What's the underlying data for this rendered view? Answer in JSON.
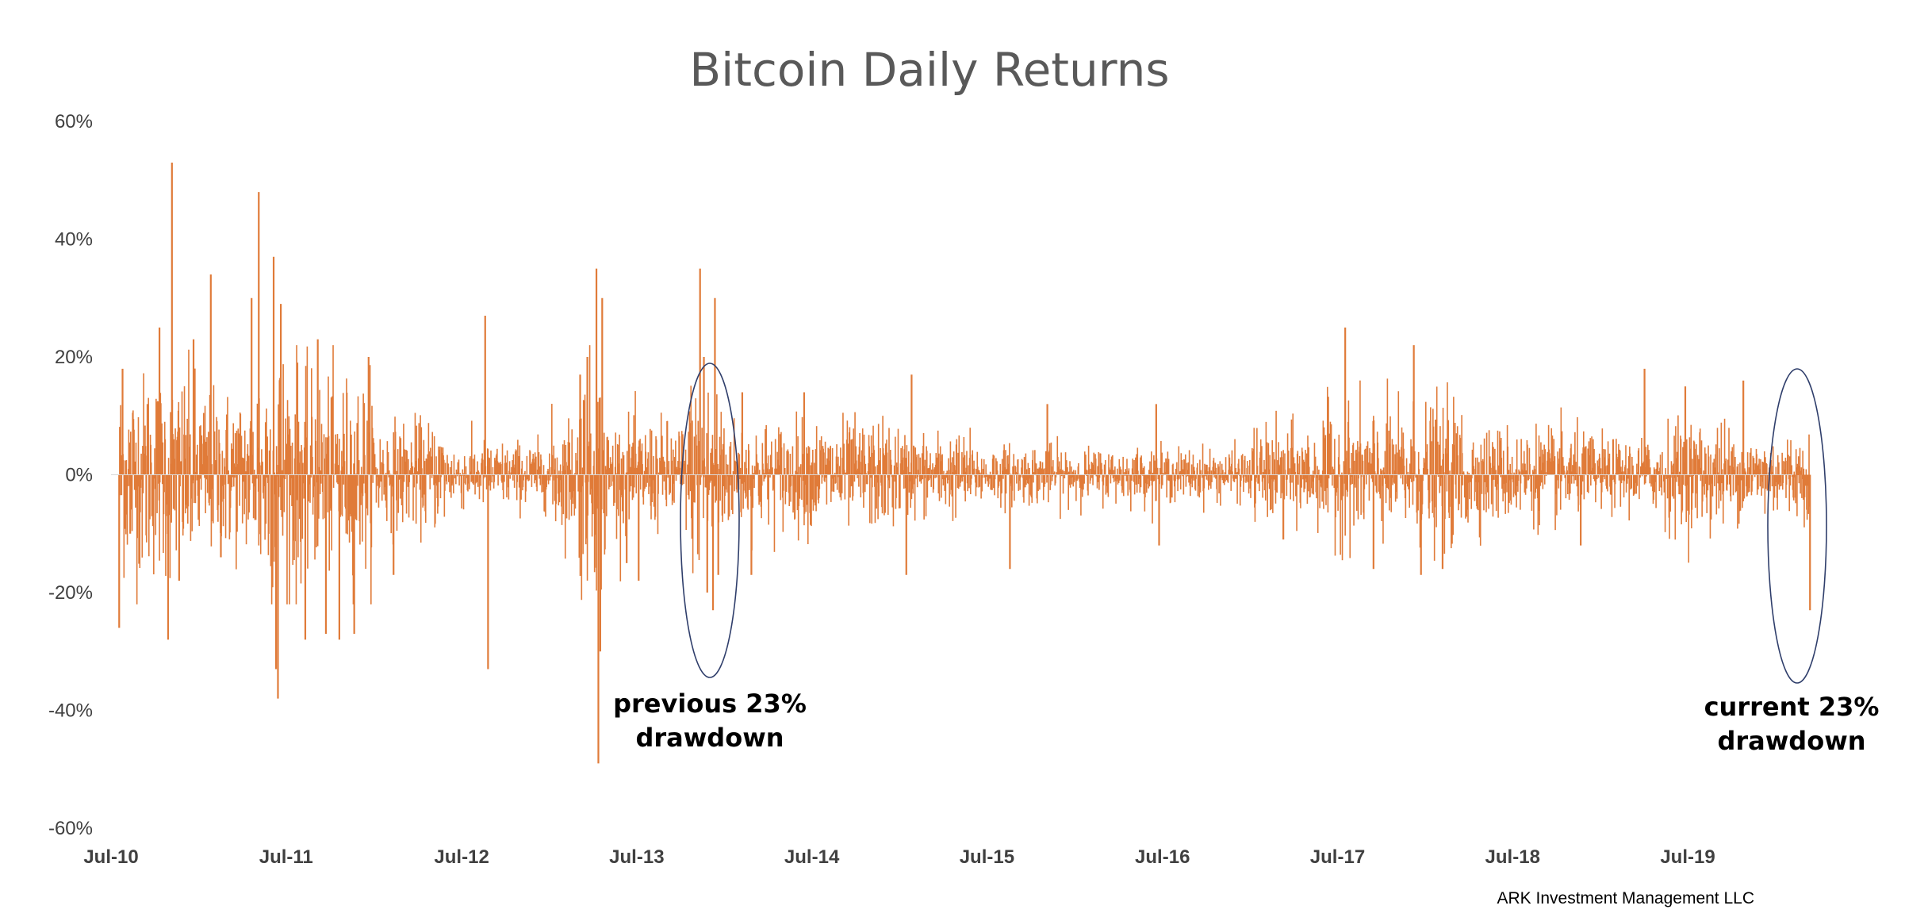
{
  "chart_data": {
    "type": "bar",
    "title": "Bitcoin Daily Returns",
    "xlabel": "",
    "ylabel": "",
    "ylim": [
      -0.6,
      0.6
    ],
    "y_ticks": [
      0.6,
      0.4,
      0.2,
      0,
      -0.2,
      -0.4,
      -0.6
    ],
    "y_tick_labels": [
      "60%",
      "40%",
      "20%",
      "0%",
      "-20%",
      "-40%",
      "-60%"
    ],
    "x_range": [
      "2010-07-01",
      "2020-03-12"
    ],
    "x_tick_labels": [
      "Jul-10",
      "Jul-11",
      "Jul-12",
      "Jul-13",
      "Jul-14",
      "Jul-15",
      "Jul-16",
      "Jul-17",
      "Jul-18",
      "Jul-19"
    ],
    "x_tick_dates": [
      "2010-07-01",
      "2011-07-01",
      "2012-07-01",
      "2013-07-01",
      "2014-07-01",
      "2015-07-01",
      "2016-07-01",
      "2017-07-01",
      "2018-07-01",
      "2019-07-01"
    ],
    "grid": false,
    "series": [
      {
        "color": "#E07B39",
        "points": [
          [
            "2010-07-18",
            -0.26
          ],
          [
            "2010-07-25",
            0.18
          ],
          [
            "2010-08-10",
            -0.1
          ],
          [
            "2010-09-15",
            0.12
          ],
          [
            "2010-10-10",
            0.25
          ],
          [
            "2010-10-28",
            -0.28
          ],
          [
            "2010-11-05",
            0.53
          ],
          [
            "2010-11-20",
            -0.18
          ],
          [
            "2010-12-20",
            0.23
          ],
          [
            "2011-01-25",
            0.34
          ],
          [
            "2011-02-15",
            -0.14
          ],
          [
            "2011-04-20",
            0.3
          ],
          [
            "2011-05-05",
            0.48
          ],
          [
            "2011-06-05",
            0.37
          ],
          [
            "2011-06-10",
            -0.33
          ],
          [
            "2011-06-14",
            -0.38
          ],
          [
            "2011-06-20",
            0.29
          ],
          [
            "2011-08-10",
            -0.28
          ],
          [
            "2011-09-05",
            0.23
          ],
          [
            "2011-09-22",
            -0.27
          ],
          [
            "2011-10-20",
            -0.28
          ],
          [
            "2011-11-20",
            -0.27
          ],
          [
            "2011-12-20",
            0.2
          ],
          [
            "2012-02-10",
            -0.17
          ],
          [
            "2012-08-19",
            0.27
          ],
          [
            "2012-08-25",
            -0.33
          ],
          [
            "2013-03-05",
            0.17
          ],
          [
            "2013-03-20",
            0.2
          ],
          [
            "2013-04-08",
            0.35
          ],
          [
            "2013-04-12",
            -0.49
          ],
          [
            "2013-04-16",
            -0.3
          ],
          [
            "2013-04-20",
            0.3
          ],
          [
            "2013-06-10",
            -0.15
          ],
          [
            "2013-07-05",
            -0.18
          ],
          [
            "2013-11-10",
            0.35
          ],
          [
            "2013-11-18",
            0.2
          ],
          [
            "2013-11-25",
            -0.2
          ],
          [
            "2013-12-07",
            -0.23
          ],
          [
            "2013-12-11",
            0.3
          ],
          [
            "2013-12-18",
            -0.17
          ],
          [
            "2014-02-06",
            0.14
          ],
          [
            "2014-02-25",
            -0.17
          ],
          [
            "2014-06-15",
            0.14
          ],
          [
            "2015-01-14",
            -0.17
          ],
          [
            "2015-01-25",
            0.17
          ],
          [
            "2015-08-18",
            -0.16
          ],
          [
            "2015-11-04",
            0.12
          ],
          [
            "2016-06-18",
            0.12
          ],
          [
            "2016-06-24",
            -0.12
          ],
          [
            "2017-03-10",
            -0.11
          ],
          [
            "2017-07-17",
            0.25
          ],
          [
            "2017-09-14",
            -0.16
          ],
          [
            "2017-12-07",
            0.22
          ],
          [
            "2017-12-22",
            -0.17
          ],
          [
            "2018-02-05",
            -0.16
          ],
          [
            "2018-11-20",
            -0.12
          ],
          [
            "2019-04-02",
            0.18
          ],
          [
            "2019-06-26",
            0.15
          ],
          [
            "2019-10-25",
            0.16
          ],
          [
            "2020-03-12",
            -0.23
          ]
        ]
      }
    ],
    "annotations": [
      {
        "lines": [
          "previous 23%",
          "drawdown"
        ],
        "ellipse_around": "2013-12"
      },
      {
        "lines": [
          "current 23%",
          "drawdown"
        ],
        "ellipse_around": "2020-03"
      }
    ],
    "credit": "ARK Investment Management LLC"
  }
}
